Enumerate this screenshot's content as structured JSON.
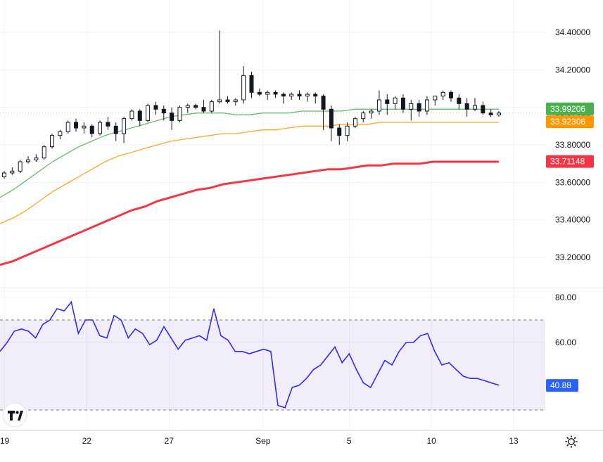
{
  "chart_data": [
    {
      "type": "candlestick",
      "title": "",
      "y_axis": {
        "ylim": [
          33.1,
          34.5
        ],
        "tick_labels": [
          "34.40000",
          "34.20000",
          "33.80000",
          "33.60000",
          "33.40000",
          "33.20000"
        ],
        "tick_values": [
          34.4,
          34.2,
          33.8,
          33.6,
          33.4,
          33.2
        ],
        "extra_label": "33.97021",
        "extra_value": 33.97021
      },
      "x_axis": {
        "tick_labels": [
          "19",
          "22",
          "27",
          "Sep",
          "5",
          "10",
          "13"
        ],
        "tick_indices": [
          0,
          10.5,
          21,
          33,
          44,
          54.5,
          65
        ],
        "bar_count": 63
      },
      "candles": [
        [
          33.63,
          33.66,
          33.62,
          33.65
        ],
        [
          33.65,
          33.68,
          33.64,
          33.66
        ],
        [
          33.66,
          33.72,
          33.65,
          33.71
        ],
        [
          33.71,
          33.74,
          33.7,
          33.72
        ],
        [
          33.72,
          33.75,
          33.71,
          33.73
        ],
        [
          33.73,
          33.8,
          33.72,
          33.79
        ],
        [
          33.79,
          33.86,
          33.78,
          33.85
        ],
        [
          33.85,
          33.88,
          33.83,
          33.87
        ],
        [
          33.87,
          33.93,
          33.86,
          33.92
        ],
        [
          33.92,
          33.94,
          33.87,
          33.89
        ],
        [
          33.89,
          33.92,
          33.86,
          33.9
        ],
        [
          33.9,
          33.91,
          33.84,
          33.86
        ],
        [
          33.86,
          33.93,
          33.85,
          33.92
        ],
        [
          33.92,
          33.95,
          33.88,
          33.9
        ],
        [
          33.9,
          33.92,
          33.82,
          33.86
        ],
        [
          33.86,
          33.95,
          33.81,
          33.94
        ],
        [
          33.94,
          33.99,
          33.93,
          33.98
        ],
        [
          33.98,
          33.99,
          33.9,
          33.93
        ],
        [
          33.93,
          34.02,
          33.92,
          34.01
        ],
        [
          34.01,
          34.03,
          33.96,
          33.99
        ],
        [
          33.99,
          34.01,
          33.93,
          33.97
        ],
        [
          33.97,
          34.0,
          33.88,
          33.93
        ],
        [
          33.93,
          34.01,
          33.92,
          34.0
        ],
        [
          34.0,
          34.02,
          33.97,
          34.01
        ],
        [
          34.01,
          34.02,
          33.99,
          34.0
        ],
        [
          34.0,
          34.04,
          33.97,
          33.98
        ],
        [
          33.98,
          34.04,
          33.97,
          34.03
        ],
        [
          34.03,
          34.41,
          34.02,
          34.04
        ],
        [
          34.04,
          34.06,
          34.02,
          34.03
        ],
        [
          34.03,
          34.05,
          34.01,
          34.04
        ],
        [
          34.04,
          34.22,
          34.02,
          34.17
        ],
        [
          34.17,
          34.19,
          34.05,
          34.08
        ],
        [
          34.08,
          34.1,
          34.06,
          34.07
        ],
        [
          34.07,
          34.09,
          34.04,
          34.08
        ],
        [
          34.08,
          34.09,
          34.05,
          34.07
        ],
        [
          34.07,
          34.08,
          34.02,
          34.06
        ],
        [
          34.06,
          34.08,
          34.04,
          34.07
        ],
        [
          34.07,
          34.09,
          34.04,
          34.06
        ],
        [
          34.06,
          34.08,
          34.03,
          34.07
        ],
        [
          34.07,
          34.08,
          34.02,
          34.06
        ],
        [
          34.06,
          34.07,
          33.88,
          33.99
        ],
        [
          33.99,
          34.01,
          33.82,
          33.89
        ],
        [
          33.89,
          33.91,
          33.8,
          33.85
        ],
        [
          33.85,
          33.92,
          33.82,
          33.9
        ],
        [
          33.9,
          33.95,
          33.89,
          33.94
        ],
        [
          33.94,
          33.98,
          33.92,
          33.97
        ],
        [
          33.97,
          33.99,
          33.94,
          33.98
        ],
        [
          33.98,
          34.09,
          33.96,
          34.04
        ],
        [
          34.04,
          34.07,
          33.96,
          34.02
        ],
        [
          34.02,
          34.06,
          33.99,
          34.05
        ],
        [
          34.05,
          34.07,
          33.97,
          33.99
        ],
        [
          33.99,
          34.04,
          33.93,
          34.02
        ],
        [
          34.02,
          34.04,
          33.95,
          33.98
        ],
        [
          33.98,
          34.06,
          33.96,
          34.04
        ],
        [
          34.04,
          34.06,
          34.01,
          34.06
        ],
        [
          34.06,
          34.09,
          34.04,
          34.08
        ],
        [
          34.08,
          34.09,
          34.03,
          34.05
        ],
        [
          34.05,
          34.07,
          33.99,
          34.02
        ],
        [
          34.02,
          34.05,
          33.95,
          33.99
        ],
        [
          33.99,
          34.05,
          33.98,
          34.01
        ],
        [
          34.01,
          34.03,
          33.96,
          33.97
        ],
        [
          33.97,
          33.99,
          33.95,
          33.96
        ],
        [
          33.96,
          33.98,
          33.95,
          33.97
        ]
      ],
      "moving_averages": [
        {
          "color": "#66bb6a",
          "values": [
            33.52,
            33.56,
            33.61,
            33.66,
            33.71,
            33.75,
            33.79,
            33.82,
            33.85,
            33.87,
            33.89,
            33.91,
            33.93,
            33.95,
            33.96,
            33.97,
            33.97,
            33.97,
            33.96,
            33.96,
            33.97,
            33.97,
            33.97,
            33.98,
            33.98,
            33.98,
            33.98,
            33.99,
            33.99,
            33.99,
            33.99,
            33.99,
            33.99,
            33.99,
            33.99,
            33.99,
            33.99,
            33.99,
            33.99
          ]
        },
        {
          "color": "#ffa726",
          "values": [
            33.38,
            33.41,
            33.45,
            33.5,
            33.55,
            33.59,
            33.63,
            33.67,
            33.71,
            33.74,
            33.76,
            33.78,
            33.8,
            33.82,
            33.83,
            33.84,
            33.85,
            33.86,
            33.86,
            33.87,
            33.88,
            33.88,
            33.89,
            33.9,
            33.9,
            33.9,
            33.91,
            33.91,
            33.91,
            33.92,
            33.92,
            33.92,
            33.92,
            33.92,
            33.92,
            33.92,
            33.92,
            33.92,
            33.92
          ]
        },
        {
          "color": "#f23645",
          "values": [
            33.16,
            33.18,
            33.21,
            33.24,
            33.27,
            33.3,
            33.33,
            33.36,
            33.39,
            33.42,
            33.45,
            33.47,
            33.5,
            33.52,
            33.54,
            33.56,
            33.57,
            33.59,
            33.6,
            33.61,
            33.62,
            33.63,
            33.64,
            33.65,
            33.66,
            33.67,
            33.67,
            33.68,
            33.69,
            33.69,
            33.7,
            33.7,
            33.7,
            33.71,
            33.71,
            33.71,
            33.71,
            33.71,
            33.71
          ]
        }
      ],
      "price_badges": [
        {
          "label": "33.99206",
          "value": 33.99206,
          "color": "#4caf50"
        },
        {
          "label": "33.92306",
          "value": 33.92306,
          "color": "#ff9800"
        },
        {
          "label": "33.71148",
          "value": 33.71148,
          "color": "#f23645"
        }
      ]
    },
    {
      "type": "line",
      "title": "",
      "y_axis": {
        "ylim": [
          24,
          84
        ],
        "tick_labels": [
          "80.00",
          "60.00"
        ],
        "tick_values": [
          80,
          60
        ],
        "band": [
          30,
          70
        ]
      },
      "series": [
        {
          "color": "#2b2bff",
          "values": [
            56,
            60,
            65,
            66,
            65,
            62,
            68,
            70,
            75,
            74,
            78,
            64,
            70,
            70,
            63,
            62,
            72,
            70,
            62,
            66,
            64,
            59,
            61,
            67,
            62,
            57,
            61,
            62,
            63,
            61,
            75,
            63,
            61,
            56,
            56,
            55,
            56,
            57,
            56,
            32,
            31,
            40,
            41,
            44,
            48,
            50,
            54,
            58,
            51,
            55,
            48,
            42,
            40,
            46,
            52,
            50,
            56,
            60,
            60,
            63,
            64,
            56,
            50,
            51,
            48,
            45,
            44,
            44,
            43,
            42,
            41
          ]
        }
      ],
      "current_badge": {
        "label": "40.88",
        "value": 40.88,
        "color": "#2962ff"
      }
    }
  ]
}
